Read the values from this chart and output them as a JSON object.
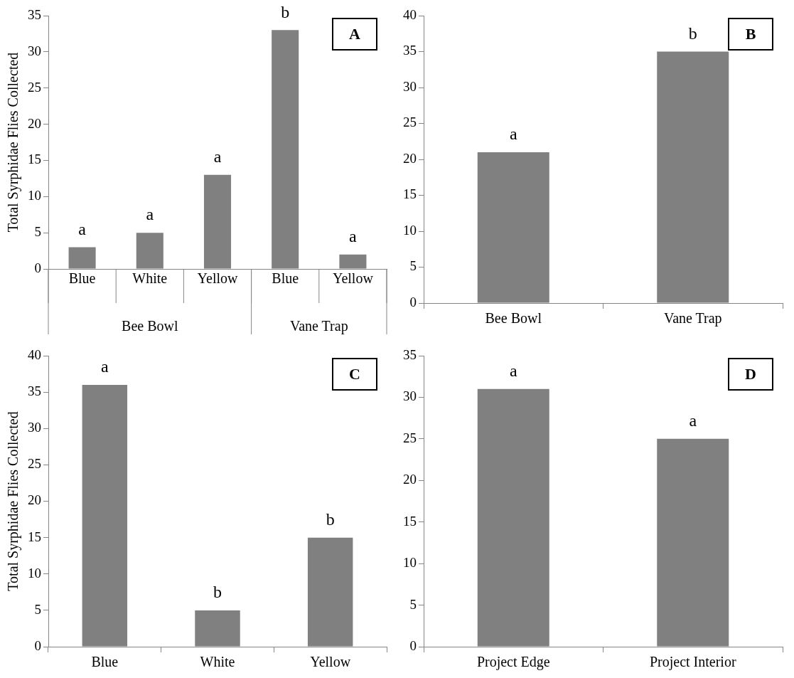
{
  "chart_data": [
    {
      "type": "bar",
      "ylabel": "Total Syrphidae Flies Collected",
      "categories": [
        "Blue",
        "White",
        "Yellow",
        "Blue",
        "Yellow"
      ],
      "values": [
        3,
        5,
        13,
        33,
        2
      ],
      "value_labels": [
        "a",
        "a",
        "a",
        "b",
        "a"
      ],
      "color": "#808080",
      "ylim": [
        0,
        35
      ],
      "yticks": [
        0,
        5,
        10,
        15,
        20,
        25,
        30,
        35
      ],
      "grid": false,
      "annotations": [
        "A",
        "Bee Bowl",
        "Vane Trap"
      ]
    },
    {
      "type": "bar",
      "categories": [
        "Bee Bowl",
        "Vane Trap"
      ],
      "values": [
        21,
        35
      ],
      "value_labels": [
        "a",
        "b"
      ],
      "color": "#808080",
      "ylim": [
        0,
        40
      ],
      "yticks": [
        0,
        5,
        10,
        15,
        20,
        25,
        30,
        35,
        40
      ],
      "grid": false,
      "annotations": [
        "B"
      ]
    },
    {
      "type": "bar",
      "ylabel": "Total Syrphidae Flies Collected",
      "categories": [
        "Blue",
        "White",
        "Yellow"
      ],
      "values": [
        36,
        5,
        15
      ],
      "value_labels": [
        "a",
        "b",
        "b"
      ],
      "color": "#808080",
      "ylim": [
        0,
        40
      ],
      "yticks": [
        0,
        5,
        10,
        15,
        20,
        25,
        30,
        35,
        40
      ],
      "grid": false,
      "annotations": [
        "C"
      ]
    },
    {
      "type": "bar",
      "categories": [
        "Project Edge",
        "Project Interior"
      ],
      "values": [
        31,
        25
      ],
      "value_labels": [
        "a",
        "a"
      ],
      "color": "#808080",
      "ylim": [
        0,
        35
      ],
      "yticks": [
        0,
        5,
        10,
        15,
        20,
        25,
        30,
        35
      ],
      "grid": false,
      "annotations": [
        "D"
      ]
    }
  ]
}
